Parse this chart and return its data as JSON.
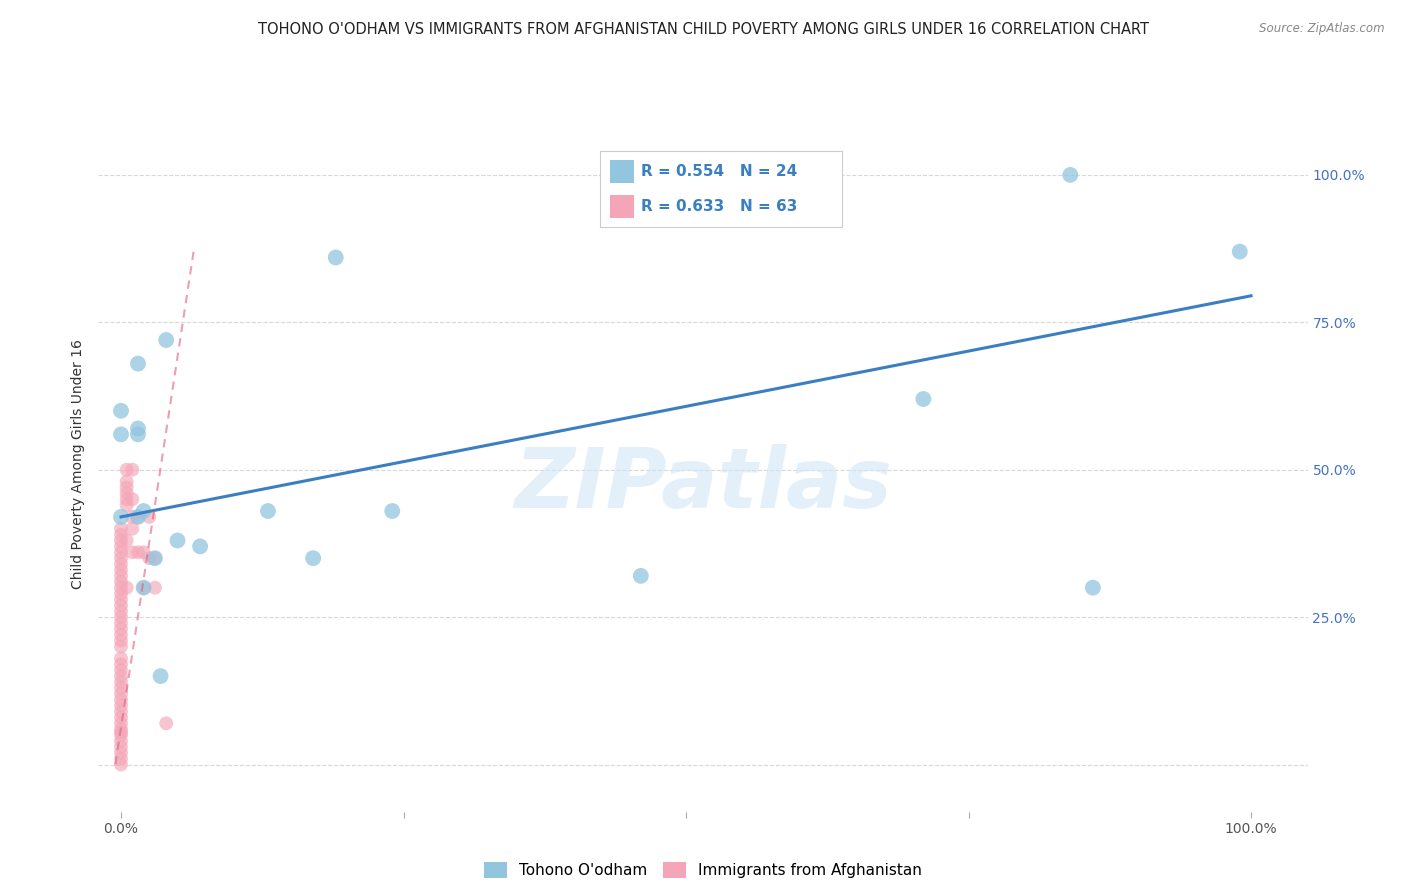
{
  "title": "TOHONO O'ODHAM VS IMMIGRANTS FROM AFGHANISTAN CHILD POVERTY AMONG GIRLS UNDER 16 CORRELATION CHART",
  "source": "Source: ZipAtlas.com",
  "ylabel": "Child Poverty Among Girls Under 16",
  "watermark": "ZIPatlas",
  "blue_label": "Tohono O'odham",
  "pink_label": "Immigrants from Afghanistan",
  "blue_R": "0.554",
  "blue_N": "24",
  "pink_R": "0.633",
  "pink_N": "63",
  "blue_color": "#92c5de",
  "pink_color": "#f4a6b8",
  "blue_line_color": "#3a7fc1",
  "pink_line_color": "#e0607a",
  "blue_scatter": [
    [
      0.0,
      0.42
    ],
    [
      0.0,
      0.56
    ],
    [
      0.0,
      0.6
    ],
    [
      0.015,
      0.68
    ],
    [
      0.015,
      0.56
    ],
    [
      0.015,
      0.57
    ],
    [
      0.015,
      0.42
    ],
    [
      0.02,
      0.43
    ],
    [
      0.02,
      0.3
    ],
    [
      0.03,
      0.35
    ],
    [
      0.035,
      0.15
    ],
    [
      0.04,
      0.72
    ],
    [
      0.05,
      0.38
    ],
    [
      0.07,
      0.37
    ],
    [
      0.13,
      0.43
    ],
    [
      0.17,
      0.35
    ],
    [
      0.19,
      0.86
    ],
    [
      0.24,
      0.43
    ],
    [
      0.46,
      0.32
    ],
    [
      0.63,
      1.0
    ],
    [
      0.71,
      0.62
    ],
    [
      0.84,
      1.0
    ],
    [
      0.86,
      0.3
    ],
    [
      0.99,
      0.87
    ]
  ],
  "pink_scatter": [
    [
      0.0,
      0.0
    ],
    [
      0.0,
      0.01
    ],
    [
      0.0,
      0.02
    ],
    [
      0.0,
      0.03
    ],
    [
      0.0,
      0.04
    ],
    [
      0.0,
      0.05
    ],
    [
      0.0,
      0.06
    ],
    [
      0.0,
      0.07
    ],
    [
      0.0,
      0.08
    ],
    [
      0.0,
      0.09
    ],
    [
      0.0,
      0.1
    ],
    [
      0.0,
      0.11
    ],
    [
      0.0,
      0.12
    ],
    [
      0.0,
      0.13
    ],
    [
      0.0,
      0.14
    ],
    [
      0.0,
      0.15
    ],
    [
      0.0,
      0.16
    ],
    [
      0.0,
      0.17
    ],
    [
      0.0,
      0.18
    ],
    [
      0.0,
      0.2
    ],
    [
      0.0,
      0.21
    ],
    [
      0.0,
      0.22
    ],
    [
      0.0,
      0.23
    ],
    [
      0.0,
      0.24
    ],
    [
      0.0,
      0.25
    ],
    [
      0.0,
      0.26
    ],
    [
      0.0,
      0.27
    ],
    [
      0.0,
      0.28
    ],
    [
      0.0,
      0.29
    ],
    [
      0.0,
      0.3
    ],
    [
      0.0,
      0.31
    ],
    [
      0.0,
      0.32
    ],
    [
      0.0,
      0.33
    ],
    [
      0.0,
      0.34
    ],
    [
      0.0,
      0.35
    ],
    [
      0.0,
      0.36
    ],
    [
      0.0,
      0.37
    ],
    [
      0.0,
      0.38
    ],
    [
      0.0,
      0.39
    ],
    [
      0.0,
      0.4
    ],
    [
      0.005,
      0.44
    ],
    [
      0.005,
      0.45
    ],
    [
      0.005,
      0.46
    ],
    [
      0.005,
      0.47
    ],
    [
      0.005,
      0.48
    ],
    [
      0.005,
      0.5
    ],
    [
      0.005,
      0.38
    ],
    [
      0.005,
      0.3
    ],
    [
      0.01,
      0.5
    ],
    [
      0.01,
      0.45
    ],
    [
      0.01,
      0.42
    ],
    [
      0.01,
      0.4
    ],
    [
      0.01,
      0.36
    ],
    [
      0.015,
      0.42
    ],
    [
      0.015,
      0.36
    ],
    [
      0.02,
      0.36
    ],
    [
      0.02,
      0.3
    ],
    [
      0.025,
      0.42
    ],
    [
      0.025,
      0.35
    ],
    [
      0.03,
      0.35
    ],
    [
      0.03,
      0.3
    ],
    [
      0.04,
      0.07
    ],
    [
      0.0,
      0.055
    ]
  ],
  "blue_line": [
    [
      0.0,
      0.42
    ],
    [
      1.0,
      0.795
    ]
  ],
  "pink_line": [
    [
      -0.005,
      0.0
    ],
    [
      0.065,
      0.88
    ]
  ],
  "xlim": [
    -0.02,
    1.05
  ],
  "ylim": [
    -0.08,
    1.1
  ],
  "xticks": [
    0.0,
    0.25,
    0.5,
    0.75,
    1.0
  ],
  "xtick_labels": [
    "0.0%",
    "",
    "",
    "",
    "100.0%"
  ],
  "yticks": [
    0.0,
    0.25,
    0.5,
    0.75,
    1.0
  ],
  "ytick_labels": [
    "",
    "25.0%",
    "50.0%",
    "75.0%",
    "100.0%"
  ],
  "grid_color": "#d8d8d8",
  "background_color": "#ffffff",
  "title_fontsize": 10.5,
  "axis_label_fontsize": 10
}
